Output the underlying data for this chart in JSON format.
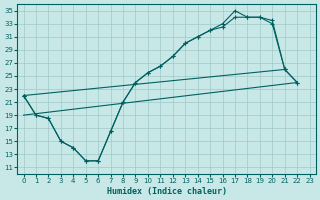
{
  "xlabel": "Humidex (Indice chaleur)",
  "bg_color": "#c8e8e8",
  "grid_color": "#a0c8c8",
  "line_color": "#006060",
  "xlim": [
    -0.5,
    23.5
  ],
  "ylim": [
    10,
    36
  ],
  "yticks": [
    11,
    13,
    15,
    17,
    19,
    21,
    23,
    25,
    27,
    29,
    31,
    33,
    35
  ],
  "xticks": [
    0,
    1,
    2,
    3,
    4,
    5,
    6,
    7,
    8,
    9,
    10,
    11,
    12,
    13,
    14,
    15,
    16,
    17,
    18,
    19,
    20,
    21,
    22,
    23
  ],
  "curve1_x": [
    0,
    1,
    2,
    3,
    4,
    5,
    6,
    7,
    8,
    9,
    10,
    11,
    12,
    13,
    14,
    15,
    16,
    17,
    18,
    19,
    20,
    21
  ],
  "curve1_y": [
    22,
    19,
    18.5,
    15,
    14,
    12,
    12,
    16.5,
    21,
    24,
    25.5,
    26.5,
    28,
    30,
    31,
    32,
    33,
    35,
    34,
    34,
    33,
    26
  ],
  "curve2_x": [
    0,
    1,
    2,
    3,
    4,
    5,
    6,
    7,
    8,
    9,
    10,
    11,
    12,
    13,
    14,
    15,
    16,
    17,
    18,
    19,
    20,
    21,
    22
  ],
  "curve2_y": [
    22,
    19,
    18.5,
    15,
    14,
    12,
    12,
    16.5,
    21,
    24,
    25.5,
    26.5,
    28,
    30,
    31,
    32,
    32.5,
    34,
    34,
    34,
    33.5,
    26,
    24
  ],
  "curve3_x": [
    0,
    21,
    22
  ],
  "curve3_y": [
    22,
    26,
    24
  ],
  "curve4_x": [
    0,
    22
  ],
  "curve4_y": [
    19,
    24
  ]
}
